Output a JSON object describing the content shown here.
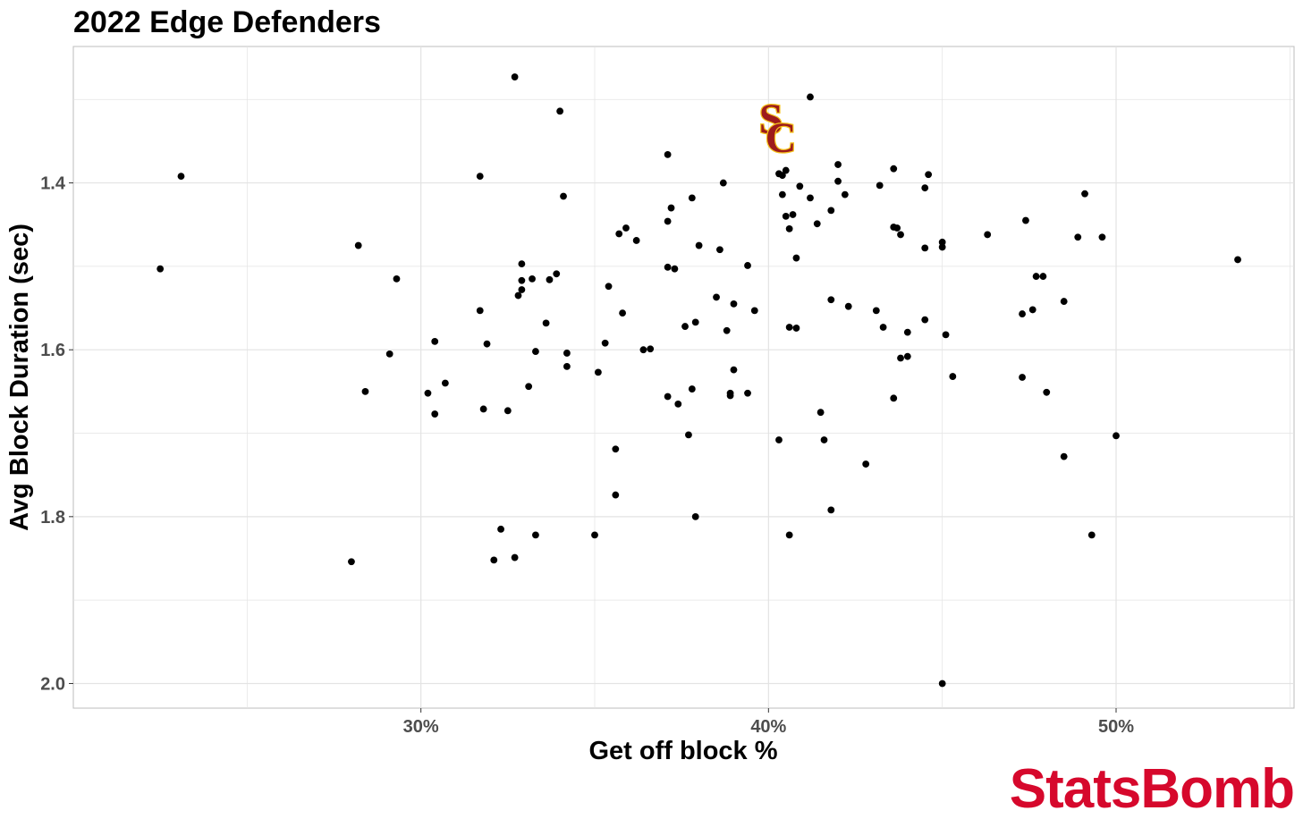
{
  "chart_data": {
    "type": "scatter",
    "title": "2022 Edge Defenders",
    "xlabel": "Get off block %",
    "ylabel": "Avg Block Duration (sec)",
    "xlim": [
      0.2,
      0.5512
    ],
    "ylim": [
      2.0295,
      1.2365
    ],
    "y_reversed": true,
    "x_tick_values": [
      0.3,
      0.4,
      0.5
    ],
    "x_tick_labels": [
      "30%",
      "40%",
      "50%"
    ],
    "y_tick_values": [
      1.4,
      1.6,
      1.8,
      2.0
    ],
    "y_tick_labels": [
      "1.4",
      "1.6",
      "1.8",
      "2.0"
    ],
    "grid": true,
    "colors": {
      "points": "#000000",
      "grid": "#e3e3e3",
      "panel_border": "#bdbdbd",
      "brand": "#d6082c",
      "logo_fill": "#9d1b1b",
      "logo_outline": "#f5c21b"
    },
    "highlight": {
      "label": "USC logo",
      "x": 0.402,
      "y": 1.333,
      "icon": "usc-sc-logo"
    },
    "points": [
      {
        "x": 0.225,
        "y": 1.503
      },
      {
        "x": 0.231,
        "y": 1.392
      },
      {
        "x": 0.28,
        "y": 1.854
      },
      {
        "x": 0.282,
        "y": 1.475
      },
      {
        "x": 0.284,
        "y": 1.65
      },
      {
        "x": 0.291,
        "y": 1.605
      },
      {
        "x": 0.293,
        "y": 1.515
      },
      {
        "x": 0.302,
        "y": 1.652
      },
      {
        "x": 0.304,
        "y": 1.677
      },
      {
        "x": 0.304,
        "y": 1.59
      },
      {
        "x": 0.307,
        "y": 1.64
      },
      {
        "x": 0.317,
        "y": 1.392
      },
      {
        "x": 0.317,
        "y": 1.553
      },
      {
        "x": 0.318,
        "y": 1.671
      },
      {
        "x": 0.319,
        "y": 1.593
      },
      {
        "x": 0.321,
        "y": 1.852
      },
      {
        "x": 0.323,
        "y": 1.815
      },
      {
        "x": 0.325,
        "y": 1.673
      },
      {
        "x": 0.327,
        "y": 1.849
      },
      {
        "x": 0.327,
        "y": 1.273
      },
      {
        "x": 0.328,
        "y": 1.535
      },
      {
        "x": 0.329,
        "y": 1.528
      },
      {
        "x": 0.329,
        "y": 1.517
      },
      {
        "x": 0.329,
        "y": 1.497
      },
      {
        "x": 0.331,
        "y": 1.644
      },
      {
        "x": 0.332,
        "y": 1.515
      },
      {
        "x": 0.333,
        "y": 1.822
      },
      {
        "x": 0.333,
        "y": 1.602
      },
      {
        "x": 0.336,
        "y": 1.568
      },
      {
        "x": 0.337,
        "y": 1.516
      },
      {
        "x": 0.339,
        "y": 1.509
      },
      {
        "x": 0.34,
        "y": 1.314
      },
      {
        "x": 0.341,
        "y": 1.416
      },
      {
        "x": 0.342,
        "y": 1.604
      },
      {
        "x": 0.342,
        "y": 1.62
      },
      {
        "x": 0.35,
        "y": 1.822
      },
      {
        "x": 0.351,
        "y": 1.627
      },
      {
        "x": 0.353,
        "y": 1.592
      },
      {
        "x": 0.354,
        "y": 1.524
      },
      {
        "x": 0.356,
        "y": 1.719
      },
      {
        "x": 0.356,
        "y": 1.774
      },
      {
        "x": 0.357,
        "y": 1.461
      },
      {
        "x": 0.358,
        "y": 1.556
      },
      {
        "x": 0.359,
        "y": 1.454
      },
      {
        "x": 0.362,
        "y": 1.469
      },
      {
        "x": 0.364,
        "y": 1.6
      },
      {
        "x": 0.366,
        "y": 1.599
      },
      {
        "x": 0.371,
        "y": 1.366
      },
      {
        "x": 0.371,
        "y": 1.446
      },
      {
        "x": 0.371,
        "y": 1.656
      },
      {
        "x": 0.371,
        "y": 1.501
      },
      {
        "x": 0.372,
        "y": 1.43
      },
      {
        "x": 0.373,
        "y": 1.503
      },
      {
        "x": 0.374,
        "y": 1.665
      },
      {
        "x": 0.376,
        "y": 1.572
      },
      {
        "x": 0.377,
        "y": 1.702
      },
      {
        "x": 0.378,
        "y": 1.647
      },
      {
        "x": 0.378,
        "y": 1.418
      },
      {
        "x": 0.379,
        "y": 1.567
      },
      {
        "x": 0.379,
        "y": 1.8
      },
      {
        "x": 0.38,
        "y": 1.475
      },
      {
        "x": 0.385,
        "y": 1.537
      },
      {
        "x": 0.386,
        "y": 1.48
      },
      {
        "x": 0.387,
        "y": 1.4
      },
      {
        "x": 0.388,
        "y": 1.577
      },
      {
        "x": 0.389,
        "y": 1.655
      },
      {
        "x": 0.389,
        "y": 1.652
      },
      {
        "x": 0.39,
        "y": 1.545
      },
      {
        "x": 0.39,
        "y": 1.624
      },
      {
        "x": 0.394,
        "y": 1.499
      },
      {
        "x": 0.394,
        "y": 1.652
      },
      {
        "x": 0.396,
        "y": 1.553
      },
      {
        "x": 0.403,
        "y": 1.389
      },
      {
        "x": 0.403,
        "y": 1.708
      },
      {
        "x": 0.404,
        "y": 1.414
      },
      {
        "x": 0.404,
        "y": 1.391
      },
      {
        "x": 0.405,
        "y": 1.44
      },
      {
        "x": 0.405,
        "y": 1.385
      },
      {
        "x": 0.406,
        "y": 1.455
      },
      {
        "x": 0.406,
        "y": 1.573
      },
      {
        "x": 0.406,
        "y": 1.822
      },
      {
        "x": 0.407,
        "y": 1.438
      },
      {
        "x": 0.408,
        "y": 1.49
      },
      {
        "x": 0.408,
        "y": 1.574
      },
      {
        "x": 0.409,
        "y": 1.404
      },
      {
        "x": 0.412,
        "y": 1.297
      },
      {
        "x": 0.412,
        "y": 1.418
      },
      {
        "x": 0.414,
        "y": 1.449
      },
      {
        "x": 0.415,
        "y": 1.675
      },
      {
        "x": 0.416,
        "y": 1.708
      },
      {
        "x": 0.418,
        "y": 1.433
      },
      {
        "x": 0.418,
        "y": 1.54
      },
      {
        "x": 0.418,
        "y": 1.792
      },
      {
        "x": 0.42,
        "y": 1.398
      },
      {
        "x": 0.42,
        "y": 1.378
      },
      {
        "x": 0.422,
        "y": 1.414
      },
      {
        "x": 0.423,
        "y": 1.548
      },
      {
        "x": 0.428,
        "y": 1.737
      },
      {
        "x": 0.431,
        "y": 1.553
      },
      {
        "x": 0.432,
        "y": 1.403
      },
      {
        "x": 0.433,
        "y": 1.573
      },
      {
        "x": 0.436,
        "y": 1.383
      },
      {
        "x": 0.436,
        "y": 1.453
      },
      {
        "x": 0.436,
        "y": 1.658
      },
      {
        "x": 0.437,
        "y": 1.454
      },
      {
        "x": 0.438,
        "y": 1.462
      },
      {
        "x": 0.438,
        "y": 1.61
      },
      {
        "x": 0.44,
        "y": 1.608
      },
      {
        "x": 0.44,
        "y": 1.579
      },
      {
        "x": 0.445,
        "y": 1.406
      },
      {
        "x": 0.445,
        "y": 1.478
      },
      {
        "x": 0.445,
        "y": 1.564
      },
      {
        "x": 0.446,
        "y": 1.39
      },
      {
        "x": 0.45,
        "y": 1.471
      },
      {
        "x": 0.45,
        "y": 1.477
      },
      {
        "x": 0.45,
        "y": 2.0
      },
      {
        "x": 0.451,
        "y": 1.582
      },
      {
        "x": 0.453,
        "y": 1.632
      },
      {
        "x": 0.463,
        "y": 1.462
      },
      {
        "x": 0.473,
        "y": 1.557
      },
      {
        "x": 0.473,
        "y": 1.633
      },
      {
        "x": 0.474,
        "y": 1.445
      },
      {
        "x": 0.476,
        "y": 1.552
      },
      {
        "x": 0.477,
        "y": 1.512
      },
      {
        "x": 0.479,
        "y": 1.512
      },
      {
        "x": 0.48,
        "y": 1.651
      },
      {
        "x": 0.485,
        "y": 1.542
      },
      {
        "x": 0.485,
        "y": 1.728
      },
      {
        "x": 0.489,
        "y": 1.465
      },
      {
        "x": 0.491,
        "y": 1.413
      },
      {
        "x": 0.493,
        "y": 1.822
      },
      {
        "x": 0.496,
        "y": 1.465
      },
      {
        "x": 0.5,
        "y": 1.703
      },
      {
        "x": 0.535,
        "y": 1.492
      }
    ]
  },
  "branding": {
    "text": "StatsBomb"
  },
  "logo": {
    "text": "SC"
  }
}
